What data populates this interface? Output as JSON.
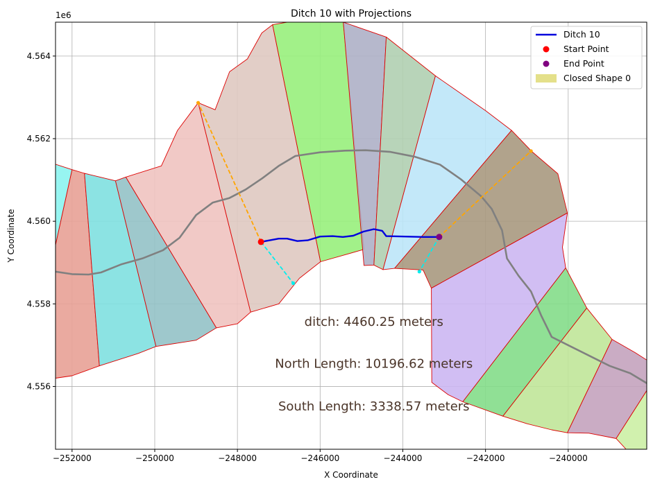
{
  "chart_data": {
    "type": "map-plot",
    "title": "Ditch 10 with Projections",
    "xlabel": "X Coordinate",
    "ylabel": "Y Coordinate",
    "y_offset_label": "1e6",
    "xlim": [
      -252400,
      -238100
    ],
    "ylim": [
      4554480,
      4564820
    ],
    "x_ticks": [
      {
        "value": -252000,
        "label": "−252000"
      },
      {
        "value": -250000,
        "label": "−250000"
      },
      {
        "value": -248000,
        "label": "−248000"
      },
      {
        "value": -246000,
        "label": "−246000"
      },
      {
        "value": -244000,
        "label": "−244000"
      },
      {
        "value": -242000,
        "label": "−242000"
      },
      {
        "value": -240000,
        "label": "−240000"
      }
    ],
    "y_ticks": [
      {
        "value": 4556000,
        "label": "4.556"
      },
      {
        "value": 4558000,
        "label": "4.558"
      },
      {
        "value": 4560000,
        "label": "4.560"
      },
      {
        "value": 4562000,
        "label": "4.562"
      },
      {
        "value": 4564000,
        "label": "4.564"
      }
    ],
    "grid": true,
    "legend_position": "top-right",
    "legend": [
      {
        "label": "Ditch 10",
        "kind": "line",
        "color": "#0000dd"
      },
      {
        "label": "Start Point",
        "kind": "dot",
        "color": "#ff0000"
      },
      {
        "label": "End Point",
        "kind": "dot",
        "color": "#800080"
      },
      {
        "label": "Closed Shape 0",
        "kind": "patch",
        "color": "#e4e08a"
      }
    ],
    "regions": [
      {
        "color": "#e8a196",
        "points": [
          [
            -252400,
            4559430
          ],
          [
            -252000,
            4561250
          ],
          [
            -251700,
            4561160
          ],
          [
            -251340,
            4556500
          ],
          [
            -252000,
            4556260
          ],
          [
            -252400,
            4556200
          ]
        ]
      },
      {
        "color": "#8cf4f0",
        "points": [
          [
            -252400,
            4561380
          ],
          [
            -252000,
            4561250
          ],
          [
            -252400,
            4559430
          ]
        ]
      },
      {
        "color": "#7fe0e0",
        "points": [
          [
            -251700,
            4561160
          ],
          [
            -250950,
            4560980
          ],
          [
            -249970,
            4556970
          ],
          [
            -250400,
            4556800
          ],
          [
            -251340,
            4556500
          ]
        ]
      },
      {
        "color": "#94c2c6",
        "points": [
          [
            -250950,
            4560980
          ],
          [
            -250700,
            4561070
          ],
          [
            -248510,
            4557420
          ],
          [
            -249000,
            4557120
          ],
          [
            -249970,
            4556970
          ]
        ]
      },
      {
        "color": "#efc3c0",
        "points": [
          [
            -250700,
            4561070
          ],
          [
            -249840,
            4561340
          ],
          [
            -249450,
            4562200
          ],
          [
            -248950,
            4562870
          ],
          [
            -247680,
            4557800
          ],
          [
            -248000,
            4557520
          ],
          [
            -248510,
            4557420
          ]
        ]
      },
      {
        "color": "#dfc9c1",
        "points": [
          [
            -248950,
            4562870
          ],
          [
            -248540,
            4562700
          ],
          [
            -248190,
            4563620
          ],
          [
            -247760,
            4563930
          ],
          [
            -247410,
            4564560
          ],
          [
            -247150,
            4564760
          ],
          [
            -245990,
            4559020
          ],
          [
            -246500,
            4558620
          ],
          [
            -247000,
            4558000
          ],
          [
            -247680,
            4557800
          ]
        ]
      },
      {
        "color": "#98ef7c",
        "points": [
          [
            -247150,
            4564760
          ],
          [
            -246800,
            4564820
          ],
          [
            -245440,
            4564820
          ],
          [
            -244940,
            4559320
          ],
          [
            -245990,
            4559020
          ]
        ]
      },
      {
        "color": "#aeb0c6",
        "points": [
          [
            -245440,
            4564820
          ],
          [
            -244400,
            4564460
          ],
          [
            -244700,
            4558940
          ],
          [
            -244940,
            4558930
          ]
        ]
      },
      {
        "color": "#b0cfb1",
        "points": [
          [
            -244400,
            4564460
          ],
          [
            -243210,
            4563520
          ],
          [
            -244480,
            4558830
          ],
          [
            -244700,
            4558940
          ]
        ]
      },
      {
        "color": "#bde5f8",
        "points": [
          [
            -243210,
            4563520
          ],
          [
            -242000,
            4562680
          ],
          [
            -241370,
            4562200
          ],
          [
            -244200,
            4558860
          ],
          [
            -244480,
            4558830
          ]
        ]
      },
      {
        "color": "#a99980",
        "points": [
          [
            -241370,
            4562200
          ],
          [
            -240880,
            4561690
          ],
          [
            -240250,
            4561150
          ],
          [
            -240020,
            4560200
          ],
          [
            -243310,
            4558380
          ],
          [
            -243510,
            4558820
          ],
          [
            -244200,
            4558860
          ]
        ]
      },
      {
        "color": "#ccb7f2",
        "points": [
          [
            -240020,
            4560200
          ],
          [
            -240140,
            4559370
          ],
          [
            -240060,
            4558870
          ],
          [
            -242550,
            4555630
          ],
          [
            -242900,
            4555800
          ],
          [
            -243300,
            4556100
          ],
          [
            -243310,
            4558380
          ]
        ]
      },
      {
        "color": "#84dd8a",
        "points": [
          [
            -240060,
            4558870
          ],
          [
            -239550,
            4557900
          ],
          [
            -241580,
            4555280
          ],
          [
            -242550,
            4555630
          ]
        ]
      },
      {
        "color": "#c0e699",
        "points": [
          [
            -239550,
            4557900
          ],
          [
            -238940,
            4557140
          ],
          [
            -240020,
            4554880
          ],
          [
            -240400,
            4554950
          ],
          [
            -241000,
            4555100
          ],
          [
            -241580,
            4555280
          ]
        ]
      },
      {
        "color": "#c4a3be",
        "points": [
          [
            -238940,
            4557140
          ],
          [
            -238380,
            4556820
          ],
          [
            -238100,
            4556640
          ],
          [
            -238100,
            4555900
          ],
          [
            -238840,
            4554740
          ],
          [
            -239500,
            4554870
          ],
          [
            -240020,
            4554880
          ]
        ]
      },
      {
        "color": "#ccf0a5",
        "points": [
          [
            -238100,
            4555900
          ],
          [
            -238100,
            4554480
          ],
          [
            -238600,
            4554480
          ],
          [
            -238840,
            4554740
          ]
        ]
      }
    ],
    "ditch_line": {
      "label": "Ditch 10",
      "color": "#0000dd",
      "points": [
        [
          -247430,
          4559500
        ],
        [
          -247000,
          4559580
        ],
        [
          -246800,
          4559580
        ],
        [
          -246550,
          4559520
        ],
        [
          -246300,
          4559540
        ],
        [
          -246000,
          4559630
        ],
        [
          -245700,
          4559640
        ],
        [
          -245450,
          4559620
        ],
        [
          -245200,
          4559650
        ],
        [
          -244950,
          4559750
        ],
        [
          -244700,
          4559810
        ],
        [
          -244500,
          4559770
        ],
        [
          -244400,
          4559640
        ],
        [
          -243500,
          4559620
        ],
        [
          -243120,
          4559620
        ]
      ]
    },
    "center_line": {
      "color": "#808080",
      "points": [
        [
          -252400,
          4558780
        ],
        [
          -252000,
          4558720
        ],
        [
          -251600,
          4558710
        ],
        [
          -251300,
          4558760
        ],
        [
          -250800,
          4558960
        ],
        [
          -250300,
          4559100
        ],
        [
          -249800,
          4559300
        ],
        [
          -249400,
          4559600
        ],
        [
          -249000,
          4560150
        ],
        [
          -248600,
          4560450
        ],
        [
          -248200,
          4560560
        ],
        [
          -247800,
          4560770
        ],
        [
          -247400,
          4561040
        ],
        [
          -247000,
          4561340
        ],
        [
          -246600,
          4561580
        ],
        [
          -246000,
          4561670
        ],
        [
          -245400,
          4561710
        ],
        [
          -244900,
          4561720
        ],
        [
          -244300,
          4561680
        ],
        [
          -243700,
          4561560
        ],
        [
          -243100,
          4561370
        ],
        [
          -242600,
          4561020
        ],
        [
          -242100,
          4560600
        ],
        [
          -241850,
          4560300
        ],
        [
          -241600,
          4559780
        ],
        [
          -241480,
          4559100
        ],
        [
          -241200,
          4558680
        ],
        [
          -240900,
          4558300
        ],
        [
          -240650,
          4557710
        ],
        [
          -240400,
          4557200
        ],
        [
          -240000,
          4557000
        ],
        [
          -239500,
          4556750
        ],
        [
          -239000,
          4556500
        ],
        [
          -238500,
          4556320
        ],
        [
          -238100,
          4556080
        ]
      ]
    },
    "projections": [
      {
        "color": "#ffa500",
        "points": [
          [
            -247430,
            4559500
          ],
          [
            -248950,
            4562870
          ]
        ]
      },
      {
        "color": "#00eeee",
        "points": [
          [
            -247430,
            4559500
          ],
          [
            -246650,
            4558500
          ]
        ]
      },
      {
        "color": "#ffa500",
        "points": [
          [
            -243120,
            4559620
          ],
          [
            -240900,
            4561700
          ]
        ]
      },
      {
        "color": "#00eeee",
        "points": [
          [
            -243120,
            4559620
          ],
          [
            -243600,
            4558780
          ]
        ]
      }
    ],
    "start_point": {
      "label": "Start Point",
      "x": -247430,
      "y": 4559500,
      "color": "#ff0000"
    },
    "end_point": {
      "label": "End Point",
      "x": -243120,
      "y": 4559620,
      "color": "#800080"
    },
    "annotations": [
      {
        "text": "ditch: 4460.25 meters",
        "x": -244700,
        "y": 4557470
      },
      {
        "text": "North Length: 10196.62 meters",
        "x": -244700,
        "y": 4556450
      },
      {
        "text": "South Length: 3338.57 meters",
        "x": -244700,
        "y": 4555420
      }
    ]
  }
}
